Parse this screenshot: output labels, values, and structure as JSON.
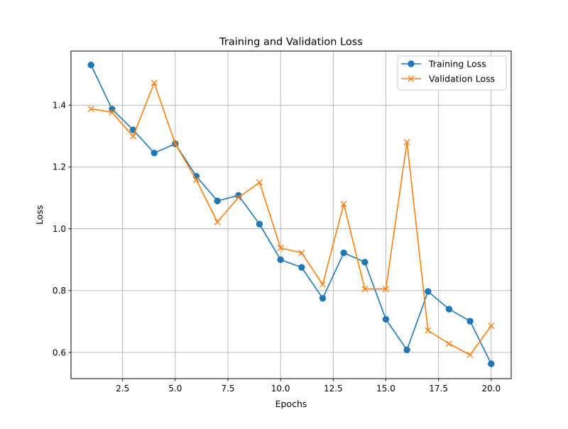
{
  "chart_data": {
    "type": "line",
    "title": "Training and Validation Loss",
    "xlabel": "Epochs",
    "ylabel": "Loss",
    "xlim": [
      0.05,
      20.95
    ],
    "ylim": [
      0.515,
      1.575
    ],
    "x_ticks": [
      2.5,
      5.0,
      7.5,
      10.0,
      12.5,
      15.0,
      17.5,
      20.0
    ],
    "x_tick_labels": [
      "2.5",
      "5.0",
      "7.5",
      "10.0",
      "12.5",
      "15.0",
      "17.5",
      "20.0"
    ],
    "y_ticks": [
      0.6,
      0.8,
      1.0,
      1.2,
      1.4
    ],
    "y_tick_labels": [
      "0.6",
      "0.8",
      "1.0",
      "1.2",
      "1.4"
    ],
    "grid": true,
    "legend_position": "top-right",
    "x": [
      1,
      2,
      3,
      4,
      5,
      6,
      7,
      8,
      9,
      10,
      11,
      12,
      13,
      14,
      15,
      16,
      17,
      18,
      19,
      20
    ],
    "series": [
      {
        "name": "Training Loss",
        "marker": "circle",
        "color": "#1f77b4",
        "values": [
          1.53,
          1.387,
          1.32,
          1.245,
          1.275,
          1.17,
          1.09,
          1.108,
          1.015,
          0.9,
          0.875,
          0.775,
          0.922,
          0.892,
          0.707,
          0.608,
          0.797,
          0.74,
          0.701,
          0.563
        ]
      },
      {
        "name": "Validation Loss",
        "marker": "x",
        "color": "#ff7f0e",
        "values": [
          1.388,
          1.377,
          1.299,
          1.472,
          1.275,
          1.158,
          1.022,
          1.101,
          1.15,
          0.938,
          0.922,
          0.82,
          1.08,
          0.805,
          0.805,
          1.28,
          0.671,
          0.628,
          0.592,
          0.686
        ]
      }
    ]
  }
}
